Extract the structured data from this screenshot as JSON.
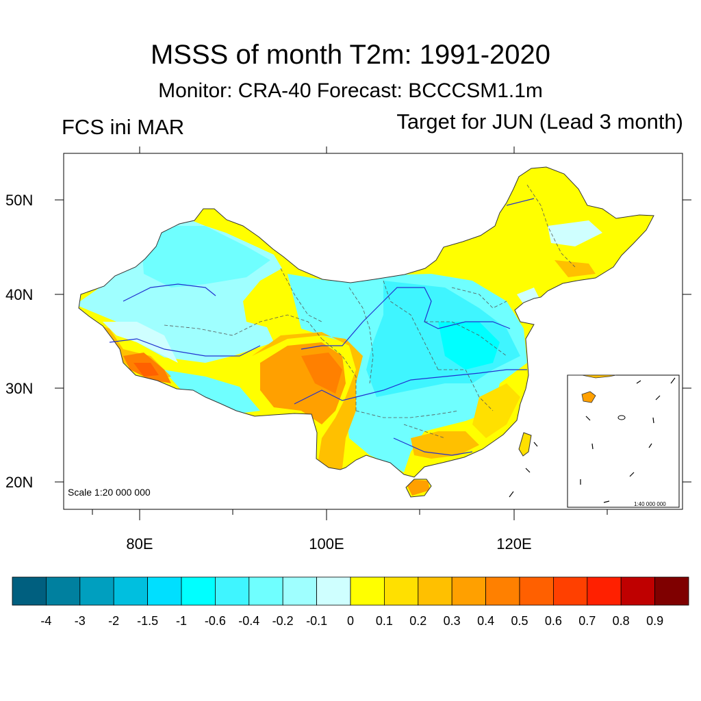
{
  "title": "MSSS of month T2m: 1991-2020",
  "subtitle": "Monitor: CRA-40   Forecast: BCCCSM1.1m",
  "left_label": "FCS ini MAR",
  "right_label": "Target for JUN (Lead 3 month)",
  "scale_main": "Scale 1:20 000 000",
  "scale_inset": "1:40 000 000",
  "lat_labels": [
    "50N",
    "40N",
    "30N",
    "20N"
  ],
  "lon_labels": [
    "80E",
    "100E",
    "120E"
  ],
  "colorbar": {
    "colors": [
      "#005f7f",
      "#00809f",
      "#009fbf",
      "#00bfdf",
      "#00dfff",
      "#00ffff",
      "#3ff5ff",
      "#6fffff",
      "#9fffff",
      "#cfffff",
      "#ffff00",
      "#ffe000",
      "#ffc000",
      "#ffa000",
      "#ff8000",
      "#ff6000",
      "#ff4000",
      "#ff2000",
      "#bf0000",
      "#7f0000"
    ],
    "labels": [
      "-4",
      "-3",
      "-2",
      "-1.5",
      "-1",
      "-0.6",
      "-0.4",
      "-0.2",
      "-0.1",
      "0",
      "0.1",
      "0.2",
      "0.3",
      "0.4",
      "0.5",
      "0.6",
      "0.7",
      "0.8",
      "0.9"
    ]
  }
}
